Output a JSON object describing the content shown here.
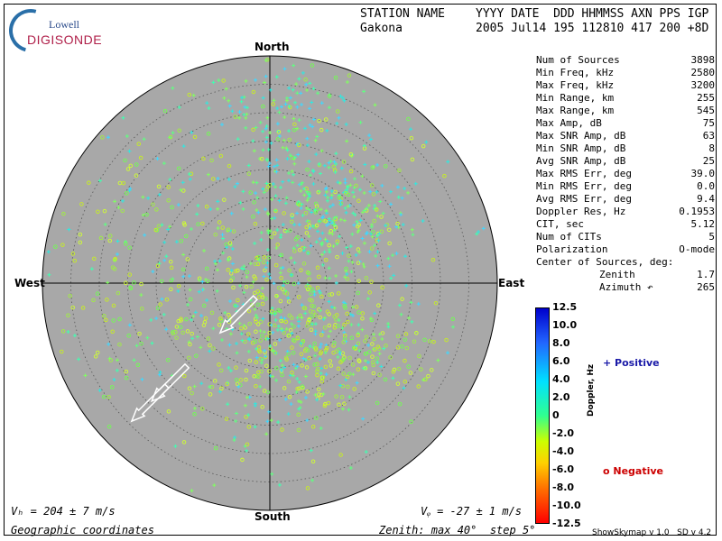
{
  "logo": {
    "line1": "Lowell",
    "line2": "DIGISONDE"
  },
  "header": {
    "labels_left": "STATION NAME",
    "labels_right": "YYYY DATE  DDD HHMMSS AXN PPS IGP",
    "station": "Gakona",
    "values": "2005 Jul14 195 112810 417 200 +8D"
  },
  "stats": [
    {
      "label": "Num of Sources",
      "value": "3898"
    },
    {
      "label": "Min Freq, kHz",
      "value": "2580"
    },
    {
      "label": "Max Freq, kHz",
      "value": "3200"
    },
    {
      "label": "Min Range, km",
      "value": "255"
    },
    {
      "label": "Max Range, km",
      "value": "545"
    },
    {
      "label": "Max Amp, dB",
      "value": "75"
    },
    {
      "label": "Max SNR Amp, dB",
      "value": "63"
    },
    {
      "label": "Min SNR Amp, dB",
      "value": "8"
    },
    {
      "label": "Avg SNR Amp, dB",
      "value": "25"
    },
    {
      "label": "Max RMS Err, deg",
      "value": "39.0"
    },
    {
      "label": "Min RMS Err, deg",
      "value": "0.0"
    },
    {
      "label": "Avg RMS Err, deg",
      "value": "9.4"
    },
    {
      "label": "Doppler Res, Hz",
      "value": "0.1953"
    },
    {
      "label": "CIT, sec",
      "value": "5.12"
    },
    {
      "label": "Num of CITs",
      "value": "5"
    },
    {
      "label": "Polarization",
      "value": "O-mode"
    }
  ],
  "center": {
    "title": "Center of Sources, deg:",
    "zenith_label": "Zenith",
    "zenith_value": "1.7",
    "azimuth_label": "Azimuth ↶",
    "azimuth_value": "265"
  },
  "compass": {
    "north": "North",
    "south": "South",
    "east": "East",
    "west": "West"
  },
  "colorbar": {
    "ticks": [
      "12.5",
      "10.0",
      "8.0",
      "6.0",
      "4.0",
      "2.0",
      "0",
      "-2.0",
      "-4.0",
      "-6.0",
      "-8.0",
      "-10.0",
      "-12.5"
    ],
    "label": "Doppler, Hz"
  },
  "legend": {
    "positive": "+ Positive",
    "negative": "o Negative"
  },
  "footer": {
    "vh": "Vₕ = 204 ± 7 m/s",
    "vz": "Vᵩ = -27 ± 1 m/s",
    "coords": "Geographic coordinates",
    "zenith": "Zenith: max 40°  step 5°",
    "version": "ShowSkymap v 1.0   SD v 4.2"
  },
  "colors": {
    "disc": "#a8a8a8",
    "positive": "#1a1aa8",
    "negative": "#cc0000"
  },
  "skymap": {
    "zenith_max_deg": 40,
    "zenith_step_deg": 5,
    "arrows": [
      {
        "azimuth_deg": 225,
        "zenith_deg": 25
      },
      {
        "azimuth_deg": 225,
        "zenith_deg": 8
      },
      {
        "azimuth_deg": 225,
        "zenith_deg": 30
      }
    ]
  }
}
